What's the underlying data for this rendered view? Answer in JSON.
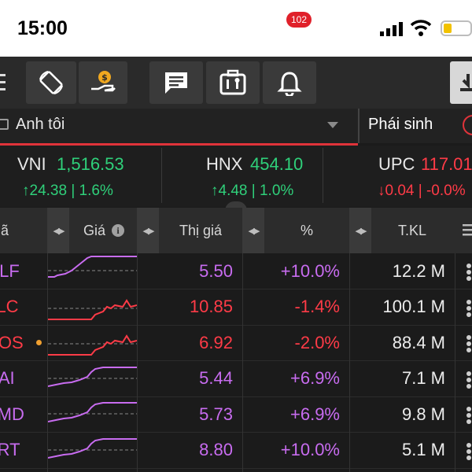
{
  "status_bar": {
    "time": "15:00"
  },
  "toolbar": {
    "notification_count": "102"
  },
  "watchlist": {
    "name": "Anh tôi",
    "derivatives_tab": "Phái sinh"
  },
  "indices": [
    {
      "name": "VNI",
      "value": "1,516.53",
      "change": "↑24.38 | 1.6%",
      "direction": "up"
    },
    {
      "name": "HNX",
      "value": "454.10",
      "change": "↑4.48 | 1.0%",
      "direction": "up"
    },
    {
      "name": "UPC",
      "value": "117.01",
      "change": "↓0.04 | -0.0%",
      "direction": "down"
    }
  ],
  "table": {
    "columns": {
      "symbol": "Mã",
      "price": "Giá",
      "market_price": "Thị giá",
      "percent": "%",
      "volume": "T.KL"
    },
    "rows": [
      {
        "symbol": "GLF",
        "market_price": "5.50",
        "percent": "+10.0%",
        "volume": "12.2 M",
        "color": "#c86cf0",
        "trend": "ceiling"
      },
      {
        "symbol": "FLC",
        "market_price": "10.85",
        "percent": "-1.4%",
        "volume": "100.1 M",
        "color": "#ff3b47",
        "trend": "down"
      },
      {
        "symbol": "ROS",
        "market_price": "6.92",
        "percent": "-2.0%",
        "volume": "88.4 M",
        "color": "#ff3b47",
        "trend": "down"
      },
      {
        "symbol": "HAI",
        "market_price": "5.44",
        "percent": "+6.9%",
        "volume": "7.1 M",
        "color": "#c86cf0",
        "trend": "ceiling"
      },
      {
        "symbol": "AMD",
        "market_price": "5.73",
        "percent": "+6.9%",
        "volume": "9.8 M",
        "color": "#c86cf0",
        "trend": "ceiling"
      },
      {
        "symbol": "ART",
        "market_price": "8.80",
        "percent": "+10.0%",
        "volume": "5.1 M",
        "color": "#c86cf0",
        "trend": "ceiling"
      }
    ]
  },
  "colors": {
    "up": "#2fd07a",
    "down": "#ff3b47",
    "ceiling": "#c86cf0",
    "accent": "#e0333a"
  },
  "icons": [
    "cellular-signal-icon",
    "wifi-icon",
    "battery-icon",
    "menu-icon",
    "rotate-screen-icon",
    "money-hand-icon",
    "message-icon",
    "toolbox-icon",
    "bell-icon",
    "download-icon",
    "chevron-down-icon",
    "info-icon",
    "sort-arrows-icon"
  ]
}
